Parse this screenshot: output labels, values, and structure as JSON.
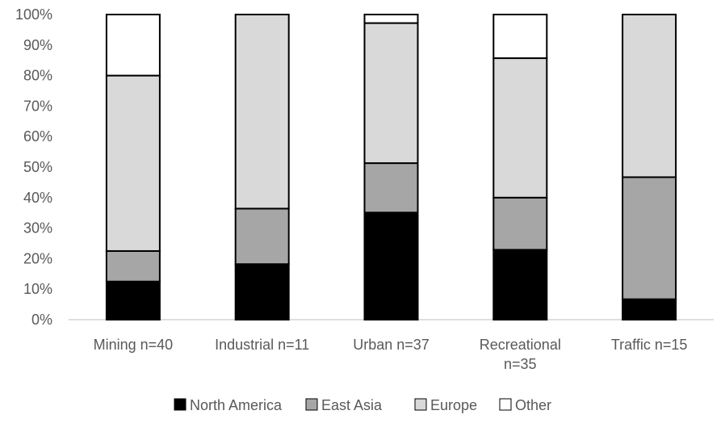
{
  "chart_data": {
    "type": "bar",
    "stacked": true,
    "percent": true,
    "categories": [
      [
        "Mining n=40"
      ],
      [
        "Industrial n=11"
      ],
      [
        "Urban n=37"
      ],
      [
        "Recreational",
        "n=35"
      ],
      [
        "Traffic n=15"
      ]
    ],
    "series": [
      {
        "name": "North America",
        "color": "#000000",
        "values": [
          12.5,
          18.2,
          35.1,
          22.9,
          6.7
        ]
      },
      {
        "name": "East Asia",
        "color": "#a6a6a6",
        "values": [
          10.0,
          18.2,
          16.2,
          17.1,
          40.0
        ]
      },
      {
        "name": "Europe",
        "color": "#d9d9d9",
        "values": [
          57.5,
          63.6,
          45.9,
          45.7,
          53.3
        ]
      },
      {
        "name": "Other",
        "color": "#ffffff",
        "values": [
          20.0,
          0.0,
          2.8,
          14.3,
          0.0
        ]
      }
    ],
    "ylim": [
      0,
      100
    ],
    "yticks": [
      "0%",
      "10%",
      "20%",
      "30%",
      "40%",
      "50%",
      "60%",
      "70%",
      "80%",
      "90%",
      "100%"
    ],
    "grid": false,
    "legend_position": "bottom"
  }
}
